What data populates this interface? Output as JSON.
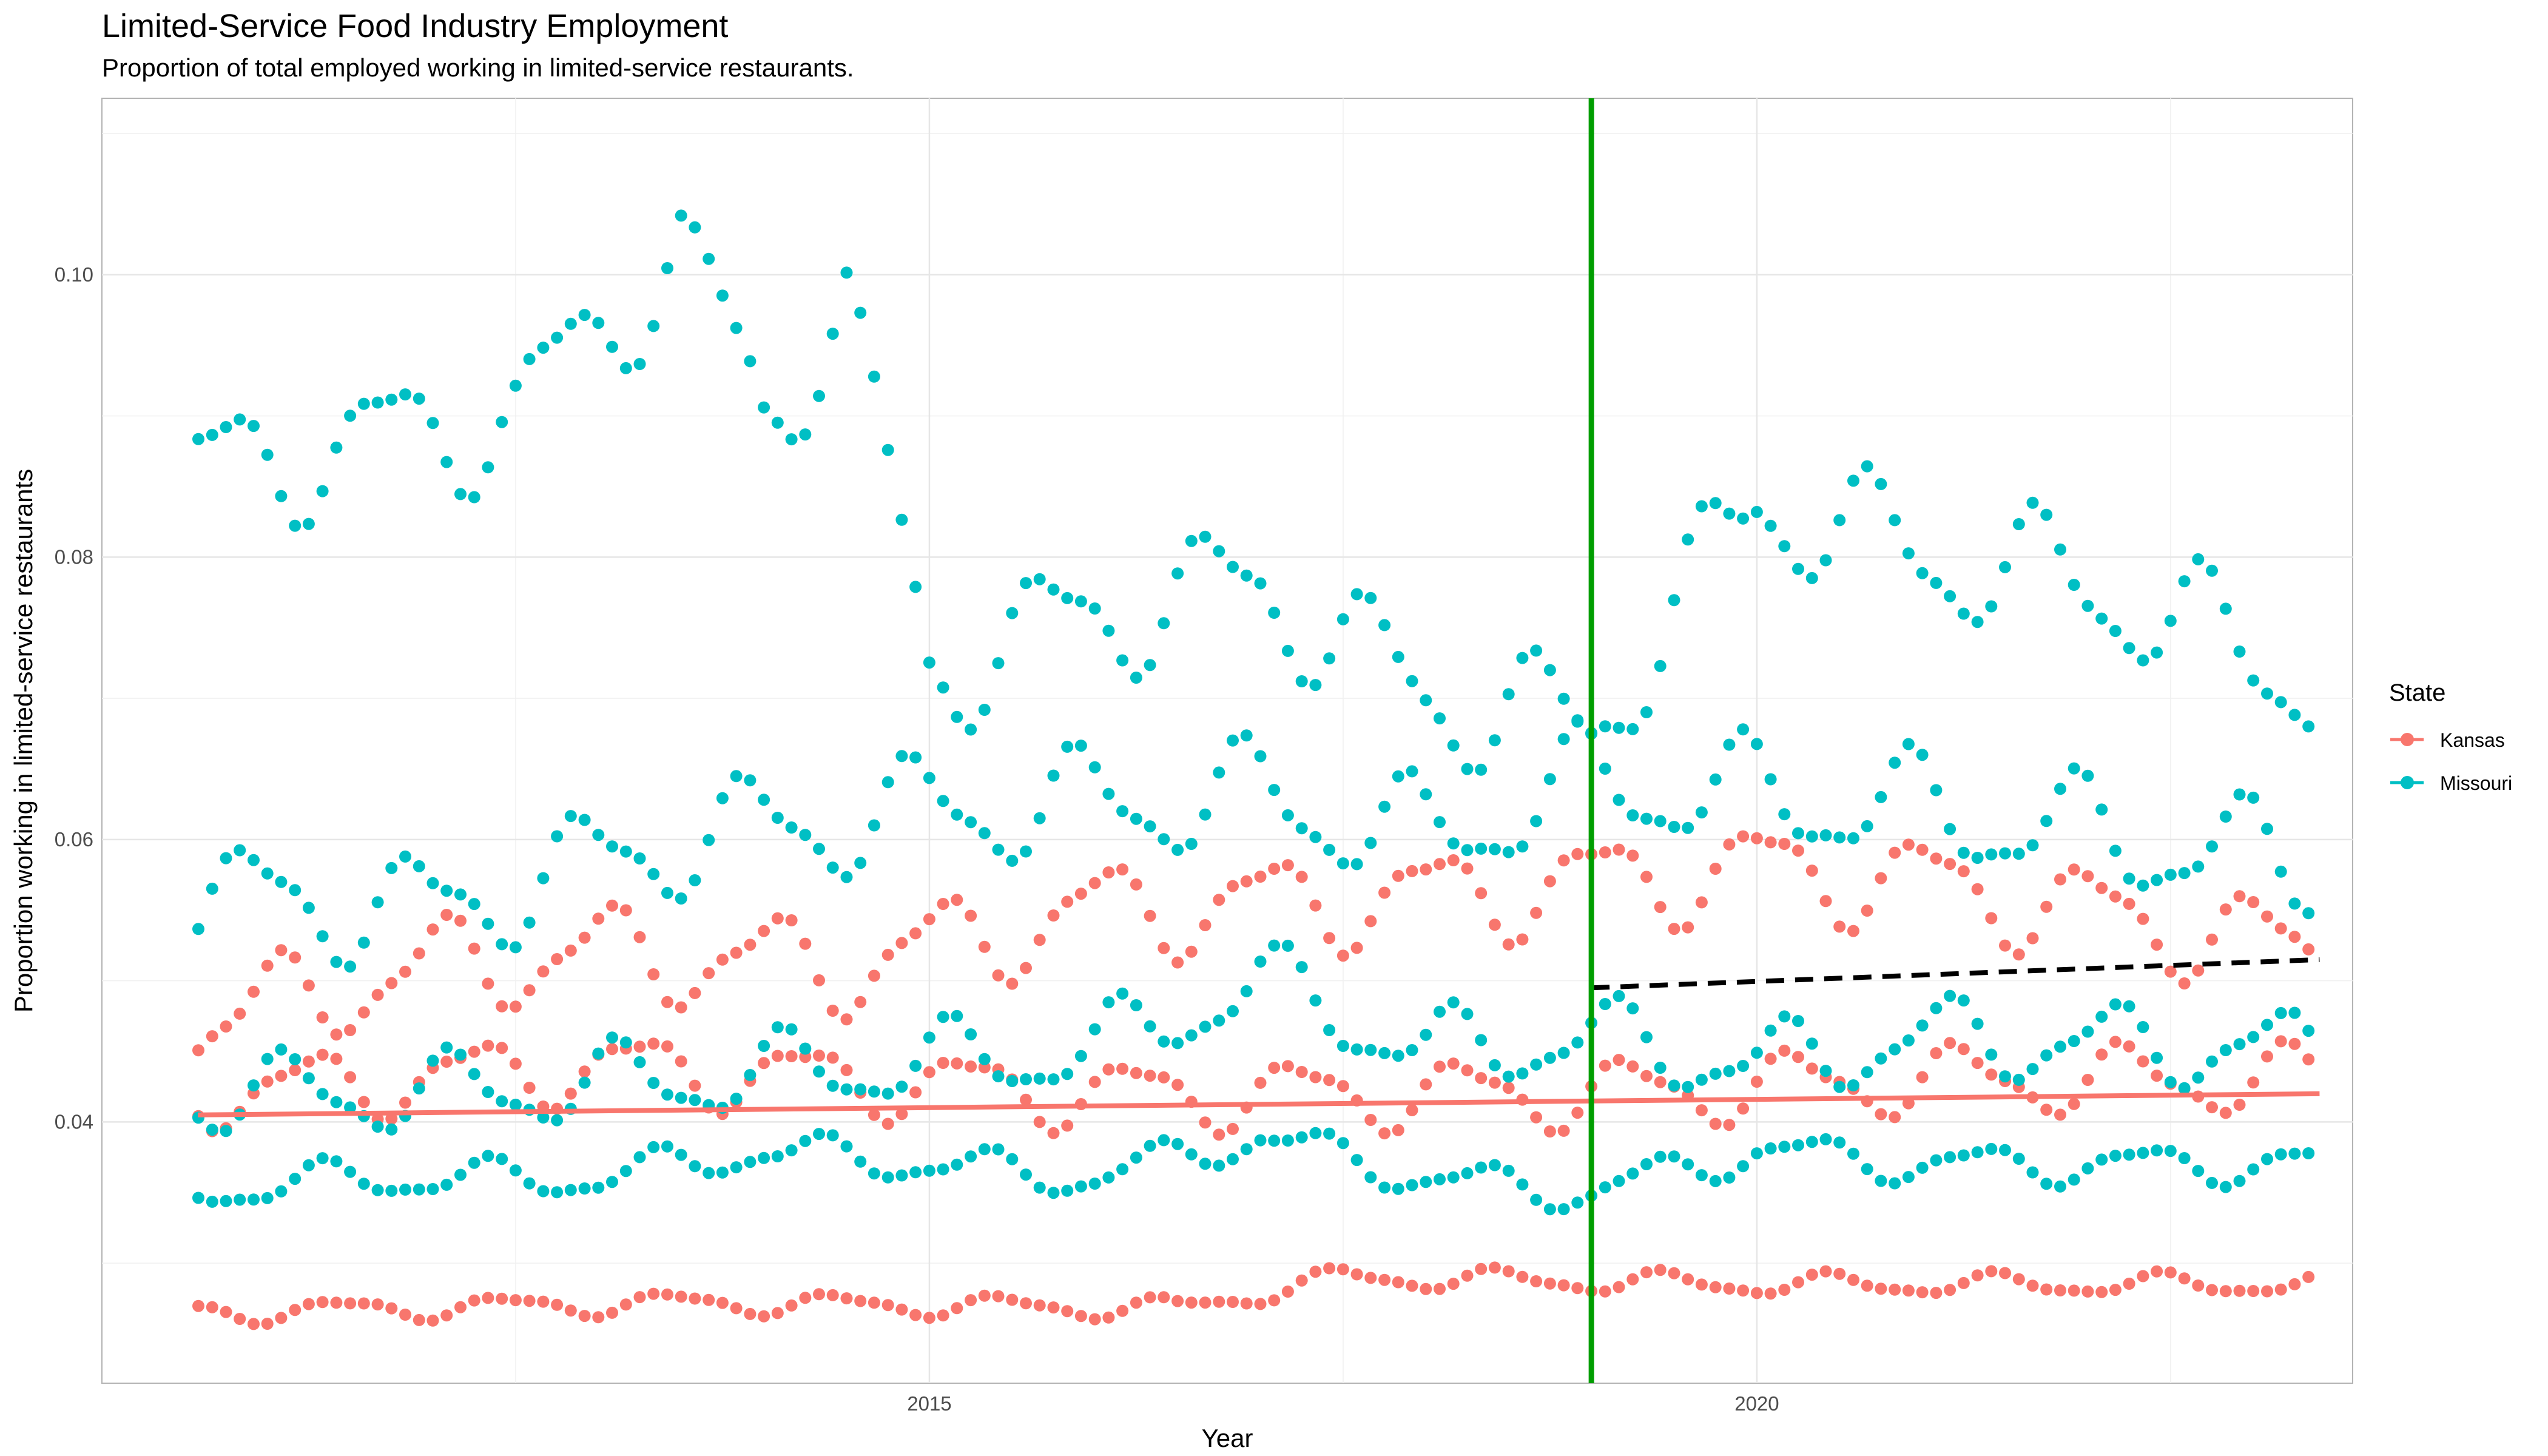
{
  "title": "Limited-Service Food Industry Employment",
  "subtitle": "Proportion of total employed working in limited-service restaurants.",
  "legend": {
    "title": "State",
    "entries": [
      {
        "label": "Kansas",
        "color": "#F8766D"
      },
      {
        "label": "Missouri",
        "color": "#00BFC4"
      }
    ]
  },
  "chart_data": {
    "type": "scatter",
    "xlabel": "Year",
    "ylabel": "Proportion working in limited-service restaurants",
    "xlim": [
      2010.0,
      2023.6
    ],
    "ylim": [
      0.0215,
      0.1125
    ],
    "x_ticks": [
      2015,
      2020
    ],
    "y_ticks": [
      0.04,
      0.06,
      0.08,
      0.1
    ],
    "y_tick_labels": [
      "0.04",
      "0.06",
      "0.08",
      "0.10"
    ],
    "grid": true,
    "legend_position": "right",
    "start_year": 2010.583,
    "months": 154,
    "series": [
      {
        "name": "Kansas",
        "color": "#F8766D",
        "bands": [
          {
            "base": [
              [
                2010.58,
                0.0265
              ],
              [
                2013.5,
                0.0272
              ],
              [
                2016.5,
                0.0268
              ],
              [
                2017.5,
                0.029
              ],
              [
                2020.0,
                0.0285
              ],
              [
                2023.4,
                0.0285
              ]
            ],
            "amp": 0.0007
          },
          {
            "base": [
              [
                2010.58,
                0.042
              ],
              [
                2013.0,
                0.044
              ],
              [
                2016.0,
                0.042
              ],
              [
                2019.0,
                0.042
              ],
              [
                2021.0,
                0.043
              ],
              [
                2023.4,
                0.043
              ]
            ],
            "amp": 0.0022
          },
          {
            "base": [
              [
                2010.58,
                0.047
              ],
              [
                2012.0,
                0.051
              ],
              [
                2013.0,
                0.052
              ],
              [
                2014.5,
                0.051
              ],
              [
                2016.0,
                0.055
              ],
              [
                2018.0,
                0.056
              ],
              [
                2020.0,
                0.058
              ],
              [
                2021.0,
                0.057
              ],
              [
                2023.4,
                0.052
              ]
            ],
            "amp": 0.003
          }
        ],
        "trend": {
          "x": [
            2010.58,
            2023.4
          ],
          "y": [
            0.0405,
            0.042
          ],
          "color": "#F8766D",
          "style": "solid"
        }
      },
      {
        "name": "Missouri",
        "color": "#00BFC4",
        "bands": [
          {
            "base": [
              [
                2010.58,
                0.035
              ],
              [
                2011.5,
                0.036
              ],
              [
                2013.0,
                0.036
              ],
              [
                2014.0,
                0.038
              ],
              [
                2015.0,
                0.037
              ],
              [
                2016.0,
                0.036
              ],
              [
                2017.0,
                0.039
              ],
              [
                2018.0,
                0.036
              ],
              [
                2019.0,
                0.035
              ],
              [
                2020.0,
                0.038
              ],
              [
                2021.0,
                0.037
              ],
              [
                2023.4,
                0.037
              ]
            ],
            "amp": 0.0012
          },
          {
            "base": [
              [
                2010.58,
                0.042
              ],
              [
                2012.0,
                0.042
              ],
              [
                2013.5,
                0.043
              ],
              [
                2016.0,
                0.045
              ],
              [
                2017.0,
                0.05
              ],
              [
                2018.0,
                0.045
              ],
              [
                2019.0,
                0.046
              ],
              [
                2020.0,
                0.044
              ],
              [
                2021.0,
                0.046
              ],
              [
                2023.4,
                0.045
              ]
            ],
            "amp": 0.0025
          },
          {
            "base": [
              [
                2010.58,
                0.056
              ],
              [
                2012.0,
                0.055
              ],
              [
                2013.5,
                0.06
              ],
              [
                2015.0,
                0.062
              ],
              [
                2017.0,
                0.063
              ],
              [
                2018.0,
                0.06
              ],
              [
                2019.0,
                0.064
              ],
              [
                2021.0,
                0.062
              ],
              [
                2023.4,
                0.058
              ]
            ],
            "amp": 0.0035
          },
          {
            "base": [
              [
                2010.58,
                0.086
              ],
              [
                2011.5,
                0.088
              ],
              [
                2012.5,
                0.09
              ],
              [
                2013.5,
                0.102
              ],
              [
                2014.0,
                0.09
              ],
              [
                2014.5,
                0.098
              ],
              [
                2015.0,
                0.072
              ],
              [
                2016.0,
                0.076
              ],
              [
                2017.0,
                0.078
              ],
              [
                2018.0,
                0.07
              ],
              [
                2019.0,
                0.068
              ],
              [
                2020.0,
                0.084
              ],
              [
                2021.0,
                0.08
              ],
              [
                2022.0,
                0.078
              ],
              [
                2023.4,
                0.071
              ]
            ],
            "amp": 0.004
          }
        ],
        "trend": {
          "x": [
            2019.0,
            2023.4
          ],
          "y": [
            0.0495,
            0.0515
          ],
          "color": "#000000",
          "style": "dashed"
        }
      }
    ],
    "vline": {
      "x": 2019.0,
      "color": "#009E00"
    }
  }
}
